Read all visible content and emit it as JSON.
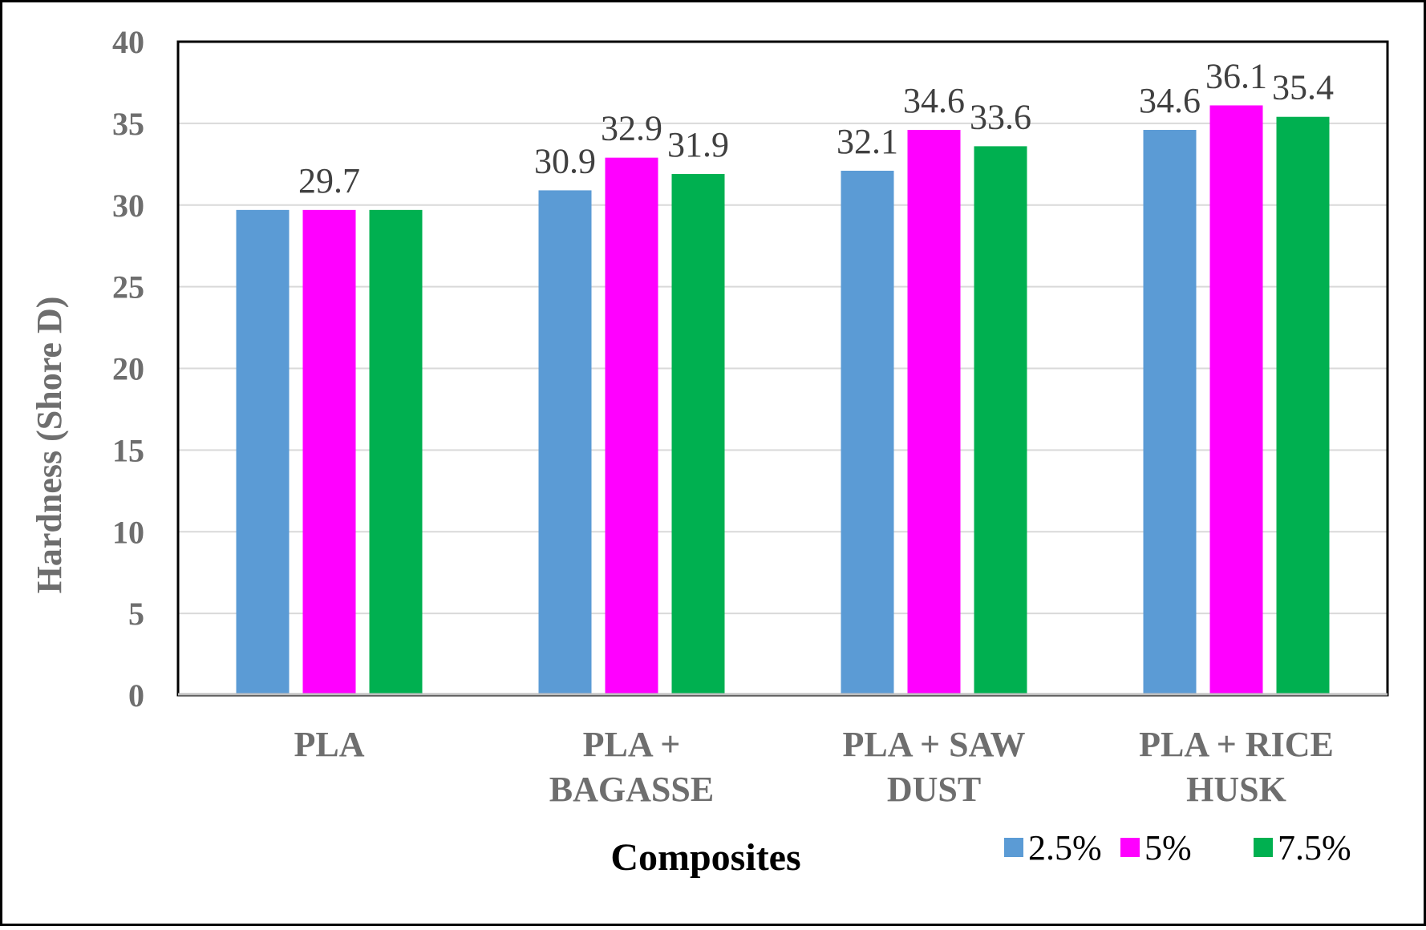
{
  "chart_data": {
    "type": "bar",
    "title": "",
    "xlabel": "Composites",
    "ylabel": "Hardness (Shore D)",
    "ylim": [
      0,
      40
    ],
    "yticks": [
      0,
      5,
      10,
      15,
      20,
      25,
      30,
      35,
      40
    ],
    "grid": true,
    "legend_position": "bottom-right",
    "categories": [
      [
        "PLA"
      ],
      [
        "PLA +",
        "BAGASSE"
      ],
      [
        "PLA + SAW",
        "DUST"
      ],
      [
        "PLA + RICE",
        "HUSK"
      ]
    ],
    "series": [
      {
        "name": "2.5%",
        "color": "#5b9bd5",
        "values": [
          29.7,
          30.9,
          32.1,
          34.6
        ]
      },
      {
        "name": "5%",
        "color": "#ff00ff",
        "values": [
          29.7,
          32.9,
          34.6,
          36.1
        ]
      },
      {
        "name": "7.5%",
        "color": "#00b050",
        "values": [
          29.7,
          31.9,
          33.6,
          35.4
        ]
      }
    ],
    "data_labels": [
      [
        "",
        "30.9",
        "32.1",
        "34.6"
      ],
      [
        "29.7",
        "32.9",
        "34.6",
        "36.1"
      ],
      [
        "",
        "31.9",
        "33.6",
        "35.4"
      ]
    ]
  }
}
